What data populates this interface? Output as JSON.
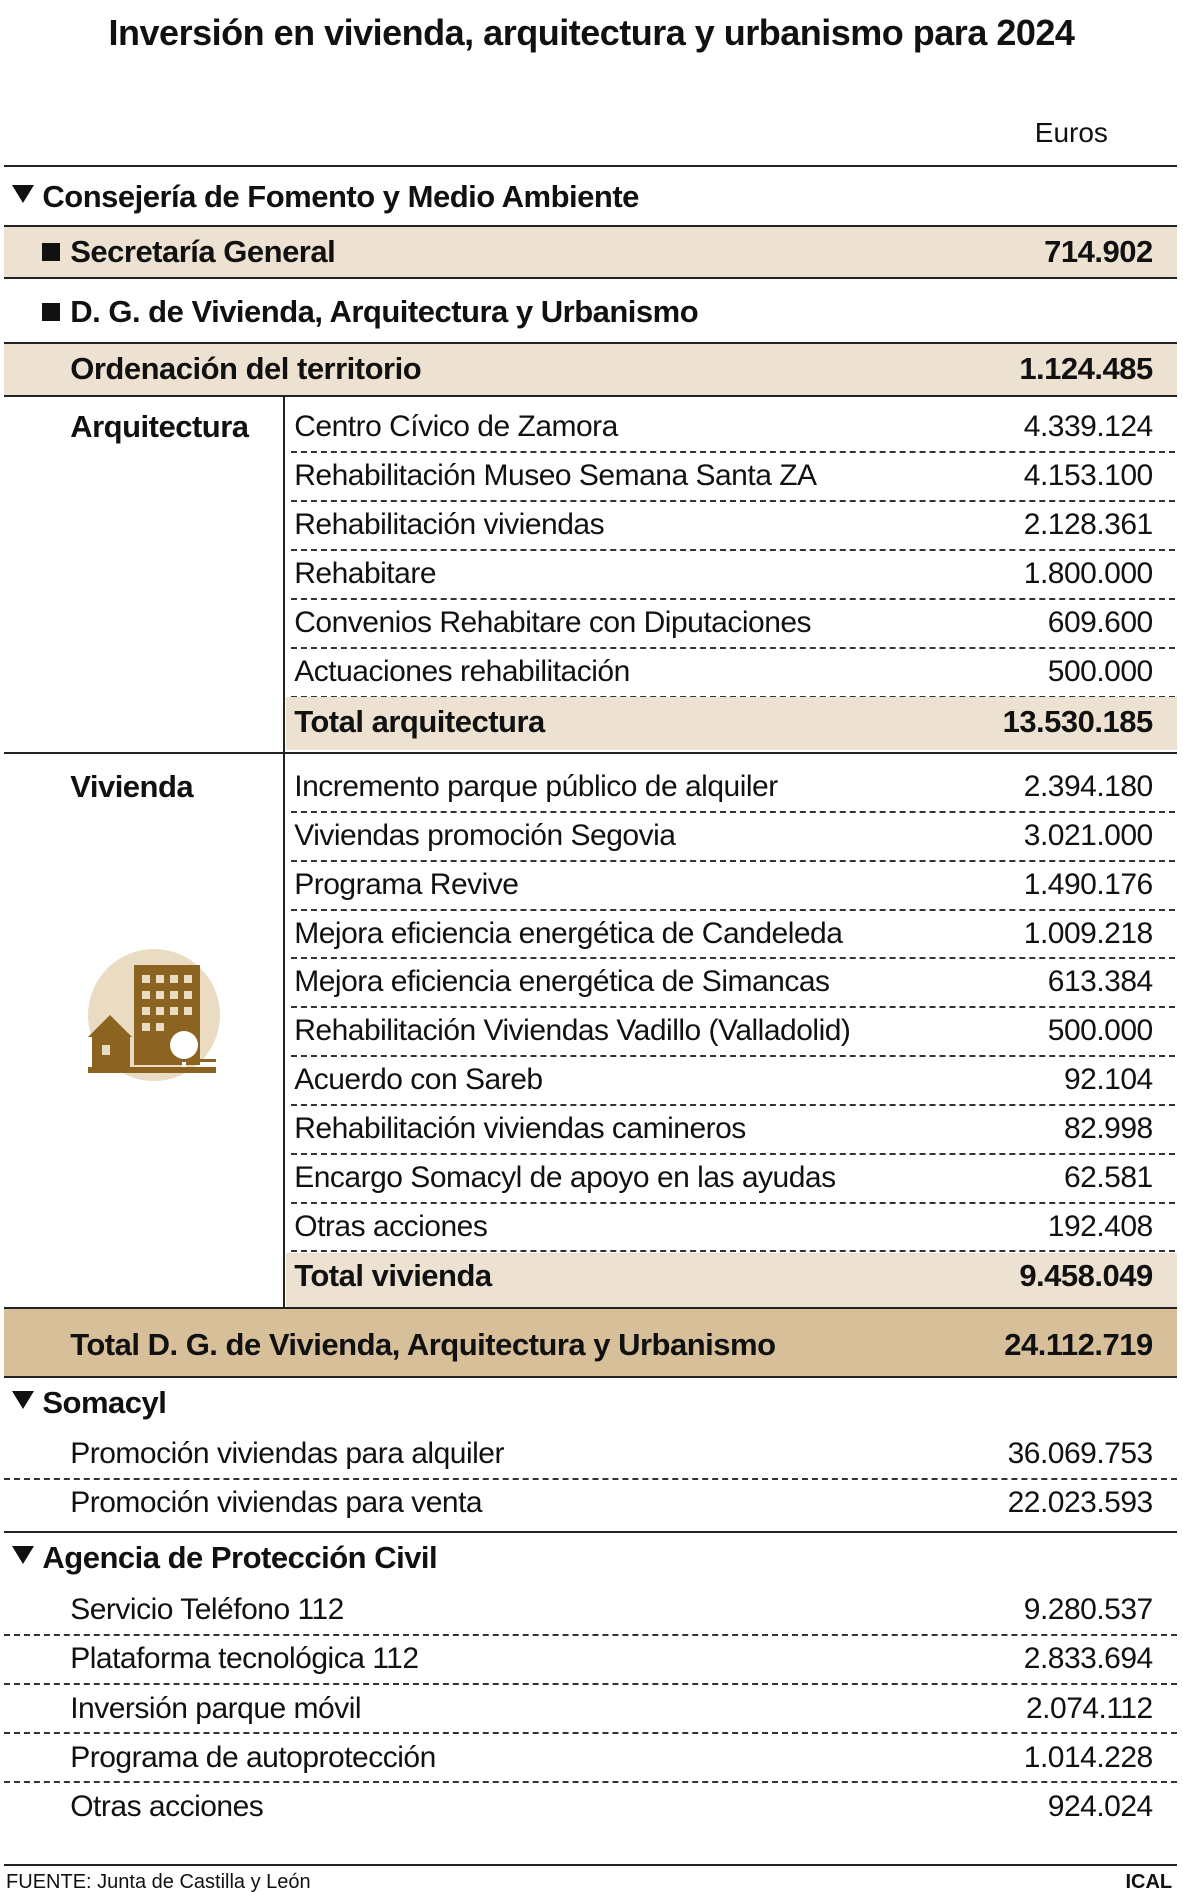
{
  "title": "Inversión en vivienda, arquitectura y urbanismo para 2024",
  "unit": "Euros",
  "fomento": {
    "title": "Consejería de Fomento y Medio Ambiente",
    "secretaria": {
      "label": "Secretaría General",
      "value": "714.902"
    },
    "dg": {
      "title": "D. G. de Vivienda, Arquitectura y Urbanismo",
      "ordenacion": {
        "label": "Ordenación del territorio",
        "value": "1.124.485"
      },
      "arquitectura": {
        "title": "Arquitectura",
        "items": [
          {
            "label": "Centro Cívico de Zamora",
            "value": "4.339.124"
          },
          {
            "label": "Rehabilitación Museo Semana Santa ZA",
            "value": "4.153.100"
          },
          {
            "label": "Rehabilitación viviendas",
            "value": "2.128.361"
          },
          {
            "label": "Rehabitare",
            "value": "1.800.000"
          },
          {
            "label": "Convenios Rehabitare con Diputaciones",
            "value": "609.600"
          },
          {
            "label": "Actuaciones rehabilitación",
            "value": "500.000"
          }
        ],
        "total": {
          "label": "Total arquitectura",
          "value": "13.530.185"
        }
      },
      "vivienda": {
        "title": "Vivienda",
        "items": [
          {
            "label": "Incremento parque público de alquiler",
            "value": "2.394.180"
          },
          {
            "label": "Viviendas promoción Segovia",
            "value": "3.021.000"
          },
          {
            "label": "Programa Revive",
            "value": "1.490.176"
          },
          {
            "label": "Mejora eficiencia energética de Candeleda",
            "value": "1.009.218"
          },
          {
            "label": "Mejora eficiencia energética de Simancas",
            "value": "613.384"
          },
          {
            "label": "Rehabilitación Viviendas Vadillo (Valladolid)",
            "value": "500.000"
          },
          {
            "label": "Acuerdo con Sareb",
            "value": "92.104"
          },
          {
            "label": "Rehabilitación viviendas camineros",
            "value": "82.998"
          },
          {
            "label": "Encargo Somacyl de apoyo en las ayudas",
            "value": "62.581"
          },
          {
            "label": "Otras acciones",
            "value": "192.408"
          }
        ],
        "total": {
          "label": "Total vivienda",
          "value": "9.458.049"
        }
      },
      "total": {
        "label": "Total D. G. de Vivienda, Arquitectura y Urbanismo",
        "value": "24.112.719"
      }
    }
  },
  "somacyl": {
    "title": "Somacyl",
    "items": [
      {
        "label": "Promoción viviendas para alquiler",
        "value": "36.069.753"
      },
      {
        "label": "Promoción viviendas para venta",
        "value": "22.023.593"
      }
    ]
  },
  "proteccion": {
    "title": "Agencia de Protección Civil",
    "items": [
      {
        "label": "Servicio Teléfono 112",
        "value": "9.280.537"
      },
      {
        "label": "Plataforma tecnológica 112",
        "value": "2.833.694"
      },
      {
        "label": "Inversión parque móvil",
        "value": "2.074.112"
      },
      {
        "label": "Programa de autoprotección",
        "value": "1.014.228"
      },
      {
        "label": "Otras acciones",
        "value": "924.024"
      }
    ]
  },
  "source": "FUENTE: Junta de Castilla y León",
  "credit": "ICAL"
}
